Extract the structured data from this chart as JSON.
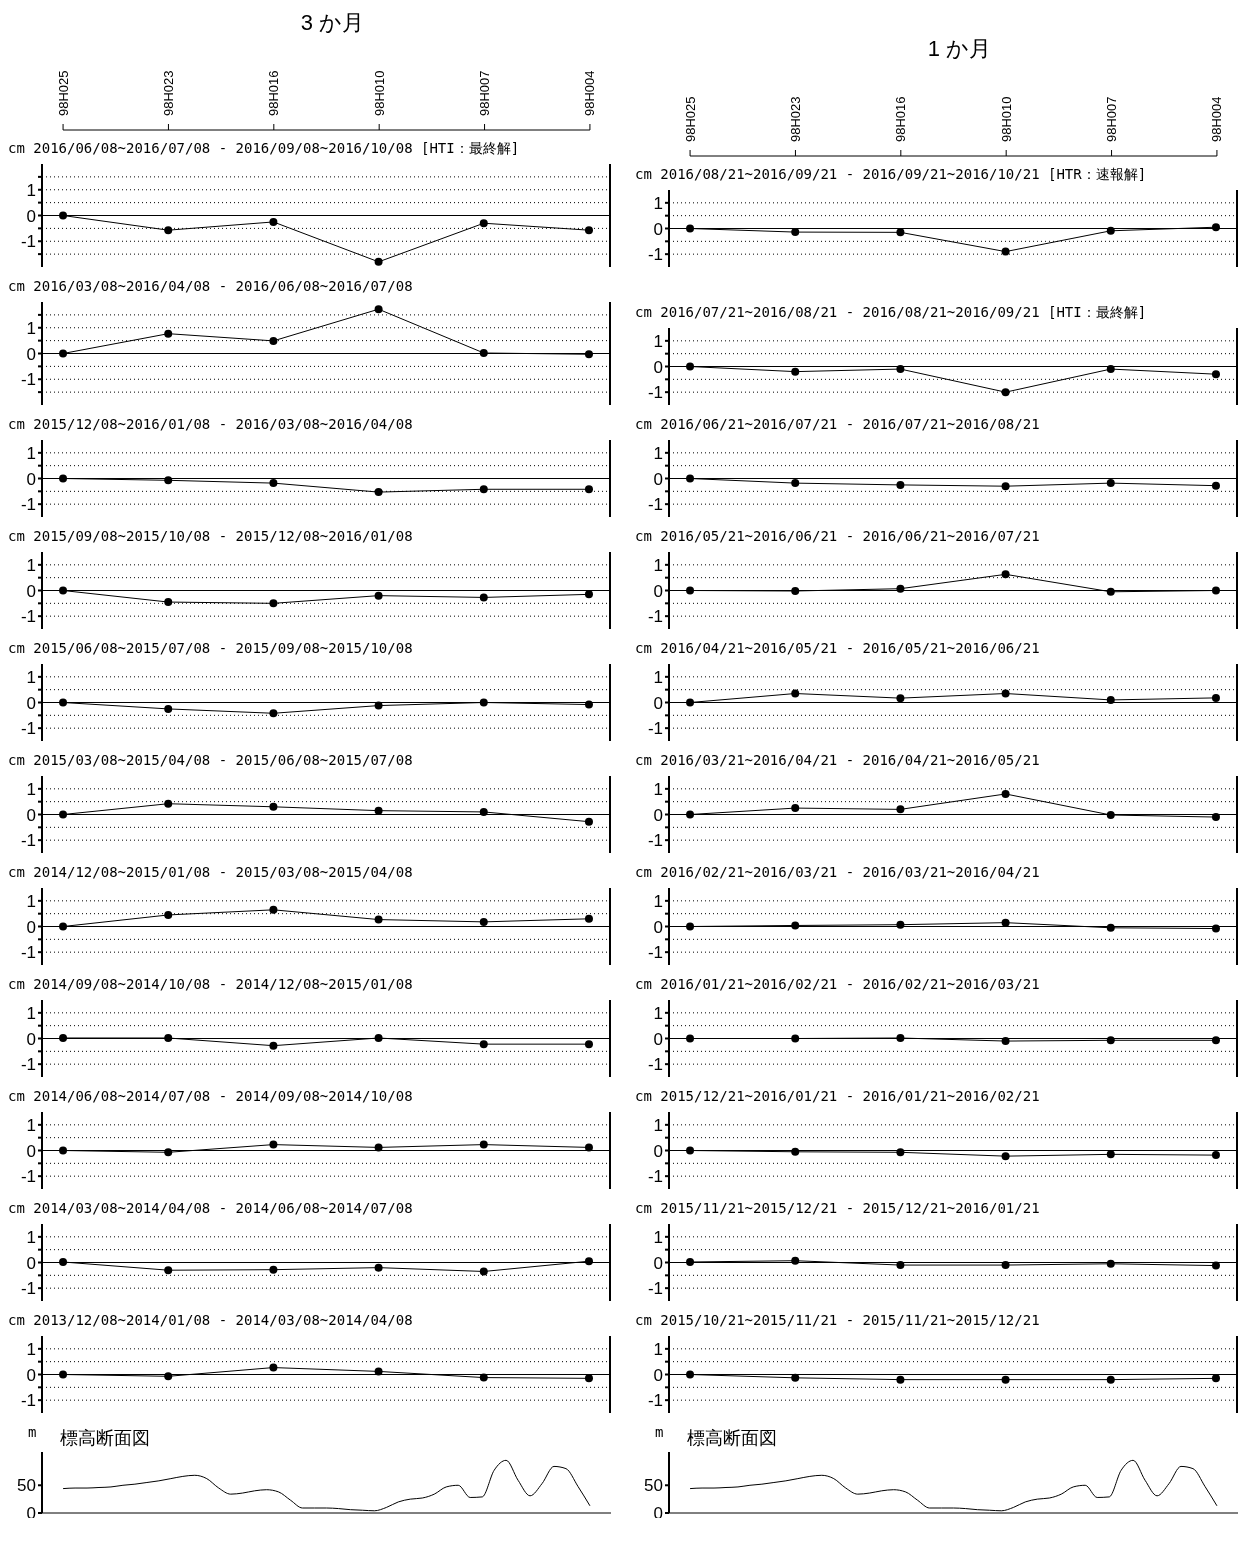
{
  "chart_data": [
    {
      "type": "line",
      "title": "3 か月",
      "subtitle": "2016/06/08~2016/07/08 - 2016/09/08~2016/10/08 [HTI：最終解]",
      "ylabel": "cm",
      "categories": [
        "98H025",
        "98H023",
        "98H016",
        "98H010",
        "98H007",
        "98H004"
      ],
      "ylim": [
        -2,
        2
      ],
      "yticks": [
        {
          "value": -1.5,
          "label": null
        },
        -1,
        {
          "value": -0.5,
          "label": null
        },
        0,
        {
          "value": 0.5,
          "label": null
        },
        1,
        {
          "value": 1.5,
          "label": null
        }
      ],
      "series": [
        {
          "color": "#000000",
          "values": [
            0,
            -0.57,
            -0.25,
            -1.8,
            -0.3,
            -0.57
          ]
        }
      ],
      "grid": true,
      "marker": "circle",
      "ref_lines": [
        {
          "axis": "y",
          "value": 0
        }
      ]
    },
    {
      "type": "line",
      "title": "1 か月",
      "subtitle": "2016/08/21~2016/09/21 - 2016/09/21~2016/10/21 [HTR：速報解]",
      "ylabel": "cm",
      "categories": [
        "98H025",
        "98H023",
        "98H016",
        "98H010",
        "98H007",
        "98H004"
      ],
      "ylim": [
        -1.5,
        1.5
      ],
      "yticks": [
        -1,
        {
          "value": -0.5,
          "label": null
        },
        0,
        {
          "value": 0.5,
          "label": null
        },
        1
      ],
      "series": [
        {
          "color": "#000000",
          "values": [
            0,
            -0.14,
            -0.15,
            -0.9,
            -0.09,
            0.05
          ]
        }
      ],
      "grid": true,
      "marker": "circle",
      "ref_lines": [
        {
          "axis": "y",
          "value": 0
        }
      ]
    },
    {
      "type": "line",
      "title": "2016/03/08~2016/04/08 - 2016/06/08~2016/07/08",
      "ylabel": "cm",
      "categories": [
        null,
        null,
        null,
        null,
        null,
        null
      ],
      "ylim": [
        -2,
        2
      ],
      "yticks": [
        {
          "value": -1.5,
          "label": null
        },
        -1,
        {
          "value": -0.5,
          "label": null
        },
        0,
        {
          "value": 0.5,
          "label": null
        },
        1,
        {
          "value": 1.5,
          "label": null
        }
      ],
      "series": [
        {
          "color": "#000000",
          "values": [
            0,
            0.77,
            0.49,
            1.72,
            0.02,
            -0.03
          ]
        }
      ],
      "grid": true,
      "marker": "circle",
      "ref_lines": [
        {
          "axis": "y",
          "value": 0
        }
      ],
      "tick_labels": "y"
    },
    {
      "type": "line",
      "title": "2016/07/21~2016/08/21 - 2016/08/21~2016/09/21 [HTI：最終解]",
      "ylabel": "cm",
      "categories": [
        null,
        null,
        null,
        null,
        null,
        null
      ],
      "ylim": [
        -1.5,
        1.5
      ],
      "yticks": [
        -1,
        {
          "value": -0.5,
          "label": null
        },
        0,
        {
          "value": 0.5,
          "label": null
        },
        1
      ],
      "series": [
        {
          "color": "#000000",
          "values": [
            0,
            -0.2,
            -0.1,
            -1,
            -0.1,
            -0.3
          ]
        }
      ],
      "grid": true,
      "marker": "circle",
      "ref_lines": [
        {
          "axis": "y",
          "value": 0
        }
      ],
      "tick_labels": "y"
    },
    {
      "type": "line",
      "title": "2015/12/08~2016/01/08 - 2016/03/08~2016/04/08",
      "ylabel": "cm",
      "categories": [
        null,
        null,
        null,
        null,
        null,
        null
      ],
      "ylim": [
        -1.5,
        1.5
      ],
      "yticks": [
        -1,
        {
          "value": -0.5,
          "label": null
        },
        0,
        {
          "value": 0.5,
          "label": null
        },
        1
      ],
      "series": [
        {
          "color": "#000000",
          "values": [
            0,
            -0.07,
            -0.18,
            -0.53,
            -0.42,
            -0.42
          ]
        }
      ],
      "grid": true,
      "marker": "circle",
      "ref_lines": [
        {
          "axis": "y",
          "value": 0
        }
      ],
      "tick_labels": "y"
    },
    {
      "type": "line",
      "title": "2016/06/21~2016/07/21 - 2016/07/21~2016/08/21",
      "ylabel": "cm",
      "categories": [
        null,
        null,
        null,
        null,
        null,
        null
      ],
      "ylim": [
        -1.5,
        1.5
      ],
      "yticks": [
        -1,
        {
          "value": -0.5,
          "label": null
        },
        0,
        {
          "value": 0.5,
          "label": null
        },
        1
      ],
      "series": [
        {
          "color": "#000000",
          "values": [
            0,
            -0.18,
            -0.25,
            -0.3,
            -0.18,
            -0.28
          ]
        }
      ],
      "grid": true,
      "marker": "circle",
      "ref_lines": [
        {
          "axis": "y",
          "value": 0
        }
      ],
      "tick_labels": "y"
    },
    {
      "type": "line",
      "title": "2015/09/08~2015/10/08 - 2015/12/08~2016/01/08",
      "ylabel": "cm",
      "categories": [
        null,
        null,
        null,
        null,
        null,
        null
      ],
      "ylim": [
        -1.5,
        1.5
      ],
      "yticks": [
        -1,
        {
          "value": -0.5,
          "label": null
        },
        0,
        {
          "value": 0.5,
          "label": null
        },
        1
      ],
      "series": [
        {
          "color": "#000000",
          "values": [
            0,
            -0.45,
            -0.5,
            -0.2,
            -0.27,
            -0.15
          ]
        }
      ],
      "grid": true,
      "marker": "circle",
      "ref_lines": [
        {
          "axis": "y",
          "value": 0
        }
      ],
      "tick_labels": "y"
    },
    {
      "type": "line",
      "title": "2016/05/21~2016/06/21 - 2016/06/21~2016/07/21",
      "ylabel": "cm",
      "categories": [
        null,
        null,
        null,
        null,
        null,
        null
      ],
      "ylim": [
        -1.5,
        1.5
      ],
      "yticks": [
        -1,
        {
          "value": -0.5,
          "label": null
        },
        0,
        {
          "value": 0.5,
          "label": null
        },
        1
      ],
      "series": [
        {
          "color": "#000000",
          "values": [
            0,
            -0.02,
            0.07,
            0.63,
            -0.05,
            0
          ]
        }
      ],
      "grid": true,
      "marker": "circle",
      "ref_lines": [
        {
          "axis": "y",
          "value": 0
        }
      ],
      "tick_labels": "y"
    },
    {
      "type": "line",
      "title": "2015/06/08~2015/07/08 - 2015/09/08~2015/10/08",
      "ylabel": "cm",
      "categories": [
        null,
        null,
        null,
        null,
        null,
        null
      ],
      "ylim": [
        -1.5,
        1.5
      ],
      "yticks": [
        -1,
        {
          "value": -0.5,
          "label": null
        },
        0,
        {
          "value": 0.5,
          "label": null
        },
        1
      ],
      "series": [
        {
          "color": "#000000",
          "values": [
            0,
            -0.25,
            -0.42,
            -0.12,
            0,
            -0.08
          ]
        }
      ],
      "grid": true,
      "marker": "circle",
      "ref_lines": [
        {
          "axis": "y",
          "value": 0
        }
      ],
      "tick_labels": "y"
    },
    {
      "type": "line",
      "title": "2016/04/21~2016/05/21 - 2016/05/21~2016/06/21",
      "ylabel": "cm",
      "categories": [
        null,
        null,
        null,
        null,
        null,
        null
      ],
      "ylim": [
        -1.5,
        1.5
      ],
      "yticks": [
        -1,
        {
          "value": -0.5,
          "label": null
        },
        0,
        {
          "value": 0.5,
          "label": null
        },
        1
      ],
      "series": [
        {
          "color": "#000000",
          "values": [
            0,
            0.35,
            0.17,
            0.35,
            0.1,
            0.18
          ]
        }
      ],
      "grid": true,
      "marker": "circle",
      "ref_lines": [
        {
          "axis": "y",
          "value": 0
        }
      ],
      "tick_labels": "y"
    },
    {
      "type": "line",
      "title": "2015/03/08~2015/04/08 - 2015/06/08~2015/07/08",
      "ylabel": "cm",
      "categories": [
        null,
        null,
        null,
        null,
        null,
        null
      ],
      "ylim": [
        -1.5,
        1.5
      ],
      "yticks": [
        -1,
        {
          "value": -0.5,
          "label": null
        },
        0,
        {
          "value": 0.5,
          "label": null
        },
        1
      ],
      "series": [
        {
          "color": "#000000",
          "values": [
            0,
            0.42,
            0.3,
            0.15,
            0.1,
            -0.28
          ]
        }
      ],
      "grid": true,
      "marker": "circle",
      "ref_lines": [
        {
          "axis": "y",
          "value": 0
        }
      ],
      "tick_labels": "y"
    },
    {
      "type": "line",
      "title": "2016/03/21~2016/04/21 - 2016/04/21~2016/05/21",
      "ylabel": "cm",
      "categories": [
        null,
        null,
        null,
        null,
        null,
        null
      ],
      "ylim": [
        -1.5,
        1.5
      ],
      "yticks": [
        -1,
        {
          "value": -0.5,
          "label": null
        },
        0,
        {
          "value": 0.5,
          "label": null
        },
        1
      ],
      "series": [
        {
          "color": "#000000",
          "values": [
            0,
            0.25,
            0.2,
            0.8,
            -0.02,
            -0.1
          ]
        }
      ],
      "grid": true,
      "marker": "circle",
      "ref_lines": [
        {
          "axis": "y",
          "value": 0
        }
      ],
      "tick_labels": "y"
    },
    {
      "type": "line",
      "title": "2014/12/08~2015/01/08 - 2015/03/08~2015/04/08",
      "ylabel": "cm",
      "categories": [
        null,
        null,
        null,
        null,
        null,
        null
      ],
      "ylim": [
        -1.5,
        1.5
      ],
      "yticks": [
        -1,
        {
          "value": -0.5,
          "label": null
        },
        0,
        {
          "value": 0.5,
          "label": null
        },
        1
      ],
      "series": [
        {
          "color": "#000000",
          "values": [
            0,
            0.45,
            0.65,
            0.27,
            0.18,
            0.3
          ]
        }
      ],
      "grid": true,
      "marker": "circle",
      "ref_lines": [
        {
          "axis": "y",
          "value": 0
        }
      ],
      "tick_labels": "y"
    },
    {
      "type": "line",
      "title": "2016/02/21~2016/03/21 - 2016/03/21~2016/04/21",
      "ylabel": "cm",
      "categories": [
        null,
        null,
        null,
        null,
        null,
        null
      ],
      "ylim": [
        -1.5,
        1.5
      ],
      "yticks": [
        -1,
        {
          "value": -0.5,
          "label": null
        },
        0,
        {
          "value": 0.5,
          "label": null
        },
        1
      ],
      "series": [
        {
          "color": "#000000",
          "values": [
            0,
            0.04,
            0.07,
            0.15,
            -0.05,
            -0.08
          ]
        }
      ],
      "grid": true,
      "marker": "circle",
      "ref_lines": [
        {
          "axis": "y",
          "value": 0
        }
      ],
      "tick_labels": "y"
    },
    {
      "type": "line",
      "title": "2014/09/08~2014/10/08 - 2014/12/08~2015/01/08",
      "ylabel": "cm",
      "categories": [
        null,
        null,
        null,
        null,
        null,
        null
      ],
      "ylim": [
        -1.5,
        1.5
      ],
      "yticks": [
        -1,
        {
          "value": -0.5,
          "label": null
        },
        0,
        {
          "value": 0.5,
          "label": null
        },
        1
      ],
      "series": [
        {
          "color": "#000000",
          "values": [
            0.02,
            0.02,
            -0.28,
            0.02,
            -0.22,
            -0.22
          ]
        }
      ],
      "grid": true,
      "marker": "circle",
      "ref_lines": [
        {
          "axis": "y",
          "value": 0
        }
      ],
      "tick_labels": "y"
    },
    {
      "type": "line",
      "title": "2016/01/21~2016/02/21 - 2016/02/21~2016/03/21",
      "ylabel": "cm",
      "categories": [
        null,
        null,
        null,
        null,
        null,
        null
      ],
      "ylim": [
        -1.5,
        1.5
      ],
      "yticks": [
        -1,
        {
          "value": -0.5,
          "label": null
        },
        0,
        {
          "value": 0.5,
          "label": null
        },
        1
      ],
      "series": [
        {
          "color": "#000000",
          "values": [
            0,
            0,
            0.02,
            -0.1,
            -0.07,
            -0.07
          ]
        }
      ],
      "grid": true,
      "marker": "circle",
      "ref_lines": [
        {
          "axis": "y",
          "value": 0
        }
      ],
      "tick_labels": "y"
    },
    {
      "type": "line",
      "title": "2014/06/08~2014/07/08 - 2014/09/08~2014/10/08",
      "ylabel": "cm",
      "categories": [
        null,
        null,
        null,
        null,
        null,
        null
      ],
      "ylim": [
        -1.5,
        1.5
      ],
      "yticks": [
        -1,
        {
          "value": -0.5,
          "label": null
        },
        0,
        {
          "value": 0.5,
          "label": null
        },
        1
      ],
      "series": [
        {
          "color": "#000000",
          "values": [
            0,
            -0.07,
            0.23,
            0.12,
            0.23,
            0.12
          ]
        }
      ],
      "grid": true,
      "marker": "circle",
      "ref_lines": [
        {
          "axis": "y",
          "value": 0
        }
      ],
      "tick_labels": "y"
    },
    {
      "type": "line",
      "title": "2015/12/21~2016/01/21 - 2016/01/21~2016/02/21",
      "ylabel": "cm",
      "categories": [
        null,
        null,
        null,
        null,
        null,
        null
      ],
      "ylim": [
        -1.5,
        1.5
      ],
      "yticks": [
        -1,
        {
          "value": -0.5,
          "label": null
        },
        0,
        {
          "value": 0.5,
          "label": null
        },
        1
      ],
      "series": [
        {
          "color": "#000000",
          "values": [
            0,
            -0.05,
            -0.07,
            -0.22,
            -0.15,
            -0.18
          ]
        }
      ],
      "grid": true,
      "marker": "circle",
      "ref_lines": [
        {
          "axis": "y",
          "value": 0
        }
      ],
      "tick_labels": "y"
    },
    {
      "type": "line",
      "title": "2014/03/08~2014/04/08 - 2014/06/08~2014/07/08",
      "ylabel": "cm",
      "categories": [
        null,
        null,
        null,
        null,
        null,
        null
      ],
      "ylim": [
        -1.5,
        1.5
      ],
      "yticks": [
        -1,
        {
          "value": -0.5,
          "label": null
        },
        0,
        {
          "value": 0.5,
          "label": null
        },
        1
      ],
      "series": [
        {
          "color": "#000000",
          "values": [
            0.02,
            -0.3,
            -0.28,
            -0.2,
            -0.35,
            0.05
          ]
        }
      ],
      "grid": true,
      "marker": "circle",
      "ref_lines": [
        {
          "axis": "y",
          "value": 0
        }
      ],
      "tick_labels": "y"
    },
    {
      "type": "line",
      "title": "2015/11/21~2015/12/21 - 2015/12/21~2016/01/21",
      "ylabel": "cm",
      "categories": [
        null,
        null,
        null,
        null,
        null,
        null
      ],
      "ylim": [
        -1.5,
        1.5
      ],
      "yticks": [
        -1,
        {
          "value": -0.5,
          "label": null
        },
        0,
        {
          "value": 0.5,
          "label": null
        },
        1
      ],
      "series": [
        {
          "color": "#000000",
          "values": [
            0.02,
            0.07,
            -0.1,
            -0.1,
            -0.05,
            -0.12
          ]
        }
      ],
      "grid": true,
      "marker": "circle",
      "ref_lines": [
        {
          "axis": "y",
          "value": 0
        }
      ],
      "tick_labels": "y"
    },
    {
      "type": "line",
      "title": "2013/12/08~2014/01/08 - 2014/03/08~2014/04/08",
      "ylabel": "cm",
      "categories": [
        null,
        null,
        null,
        null,
        null,
        null
      ],
      "ylim": [
        -1.5,
        1.5
      ],
      "yticks": [
        -1,
        {
          "value": -0.5,
          "label": null
        },
        0,
        {
          "value": 0.5,
          "label": null
        },
        1
      ],
      "series": [
        {
          "color": "#000000",
          "values": [
            0,
            -0.07,
            0.27,
            0.12,
            -0.12,
            -0.15
          ]
        }
      ],
      "grid": true,
      "marker": "circle",
      "ref_lines": [
        {
          "axis": "y",
          "value": 0
        }
      ],
      "tick_labels": "y"
    },
    {
      "type": "line",
      "title": "2015/10/21~2015/11/21 - 2015/11/21~2015/12/21",
      "ylabel": "cm",
      "categories": [
        null,
        null,
        null,
        null,
        null,
        null
      ],
      "ylim": [
        -1.5,
        1.5
      ],
      "yticks": [
        -1,
        {
          "value": -0.5,
          "label": null
        },
        0,
        {
          "value": 0.5,
          "label": null
        },
        1
      ],
      "series": [
        {
          "color": "#000000",
          "values": [
            0,
            -0.13,
            -0.2,
            -0.2,
            -0.2,
            -0.15
          ]
        }
      ],
      "grid": true,
      "marker": "circle",
      "ref_lines": [
        {
          "axis": "y",
          "value": 0
        }
      ],
      "tick_labels": "y"
    },
    {
      "type": "line",
      "ylabel": "m",
      "annotations": [
        "標高断面図"
      ],
      "categories": [
        null,
        null,
        null,
        null,
        null,
        null,
        null,
        null,
        null,
        null,
        null,
        null,
        null,
        null,
        null,
        null,
        null,
        null,
        null,
        null,
        null,
        null,
        null,
        null,
        null,
        null,
        null,
        null,
        null,
        null,
        null,
        null,
        null,
        null,
        null,
        null,
        null,
        null,
        null,
        null,
        null,
        null,
        null,
        null,
        null
      ],
      "ylim": [
        0,
        110
      ],
      "yticks": [
        0,
        50
      ],
      "series": [
        {
          "color": "#000000",
          "values": [
            44,
            45,
            45,
            46,
            47,
            50,
            52,
            55,
            58,
            62,
            66,
            68,
            62,
            45,
            34,
            36,
            40,
            42,
            38,
            23,
            9,
            9,
            9,
            8,
            6,
            5,
            4,
            10,
            20,
            25,
            27,
            34,
            47,
            50,
            28,
            29,
            77,
            95,
            59,
            31,
            53,
            84,
            80,
            48,
            13
          ]
        }
      ],
      "marker": "none",
      "tick_labels": "y"
    },
    {
      "type": "line",
      "ylabel": "m",
      "annotations": [
        "標高断面図"
      ],
      "categories": [
        null,
        null,
        null,
        null,
        null,
        null,
        null,
        null,
        null,
        null,
        null,
        null,
        null,
        null,
        null,
        null,
        null,
        null,
        null,
        null,
        null,
        null,
        null,
        null,
        null,
        null,
        null,
        null,
        null,
        null,
        null,
        null,
        null,
        null,
        null,
        null,
        null,
        null,
        null,
        null,
        null,
        null,
        null,
        null,
        null
      ],
      "ylim": [
        0,
        110
      ],
      "yticks": [
        0,
        50
      ],
      "series": [
        {
          "color": "#000000",
          "values": [
            44,
            45,
            45,
            46,
            47,
            50,
            52,
            55,
            58,
            62,
            66,
            68,
            62,
            45,
            34,
            36,
            40,
            42,
            38,
            23,
            9,
            9,
            9,
            8,
            6,
            5,
            4,
            10,
            20,
            25,
            27,
            34,
            47,
            50,
            28,
            29,
            77,
            95,
            59,
            31,
            53,
            84,
            80,
            48,
            13
          ]
        }
      ],
      "marker": "none",
      "tick_labels": "y"
    }
  ]
}
